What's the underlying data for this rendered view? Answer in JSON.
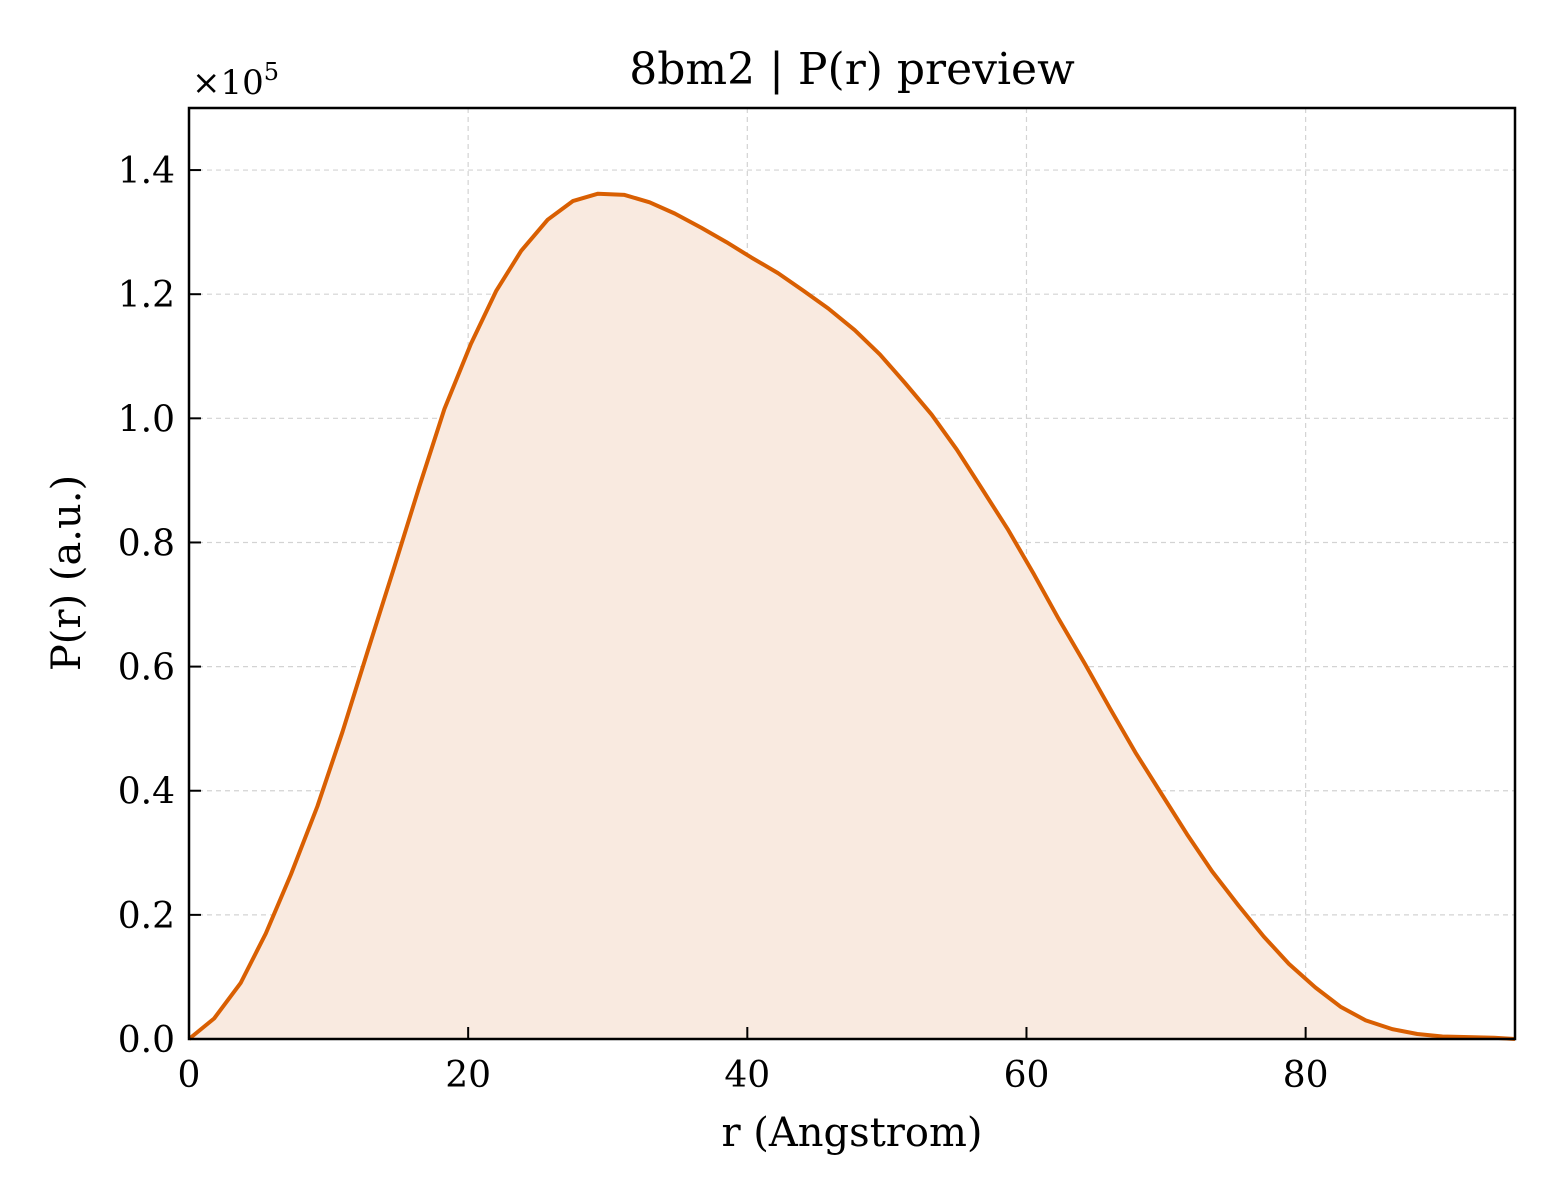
{
  "chart_data": {
    "type": "area",
    "title": "8bm2 | P(r) preview",
    "xlabel": "r (Angstrom)",
    "ylabel": "P(r) (a.u.)",
    "y_scale_label": "×10",
    "y_scale_exponent": "5",
    "xlim": [
      0,
      95
    ],
    "ylim": [
      0,
      1.5
    ],
    "y_multiplier": 100000,
    "xticks": [
      "0",
      "20",
      "40",
      "60",
      "80"
    ],
    "xtick_values": [
      0,
      20,
      40,
      60,
      80
    ],
    "yticks": [
      "0.0",
      "0.2",
      "0.4",
      "0.6",
      "0.8",
      "1.0",
      "1.2",
      "1.4"
    ],
    "ytick_values": [
      0.0,
      0.2,
      0.4,
      0.6,
      0.8,
      1.0,
      1.2,
      1.4
    ],
    "grid": true,
    "series": [
      {
        "x": [
          0,
          1.8,
          3.7,
          5.5,
          7.3,
          9.2,
          11.0,
          12.8,
          14.7,
          16.5,
          18.3,
          20.2,
          22.0,
          23.8,
          25.7,
          27.5,
          29.3,
          31.2,
          33.0,
          34.8,
          36.7,
          38.5,
          40.3,
          42.2,
          44.0,
          45.8,
          47.7,
          49.5,
          51.3,
          53.2,
          55.0,
          56.8,
          58.7,
          60.5,
          62.3,
          64.2,
          66.0,
          67.8,
          69.7,
          71.5,
          73.3,
          75.2,
          77.0,
          78.8,
          80.7,
          82.5,
          84.3,
          86.2,
          88.0,
          89.8,
          91.7,
          93.5,
          95.0
        ],
        "values": [
          0.0,
          0.033,
          0.09,
          0.17,
          0.265,
          0.375,
          0.495,
          0.625,
          0.76,
          0.89,
          1.015,
          1.12,
          1.205,
          1.27,
          1.32,
          1.35,
          1.362,
          1.36,
          1.348,
          1.33,
          1.307,
          1.284,
          1.259,
          1.234,
          1.206,
          1.177,
          1.142,
          1.103,
          1.057,
          1.006,
          0.95,
          0.887,
          0.82,
          0.75,
          0.677,
          0.604,
          0.532,
          0.462,
          0.394,
          0.33,
          0.27,
          0.215,
          0.165,
          0.121,
          0.083,
          0.052,
          0.03,
          0.016,
          0.008,
          0.004,
          0.003,
          0.002,
          0.0
        ]
      }
    ],
    "colors": {
      "line": "#d95f02",
      "fill": "#f9eae0",
      "grid": "#d3d3d3",
      "axes": "#000000"
    }
  }
}
